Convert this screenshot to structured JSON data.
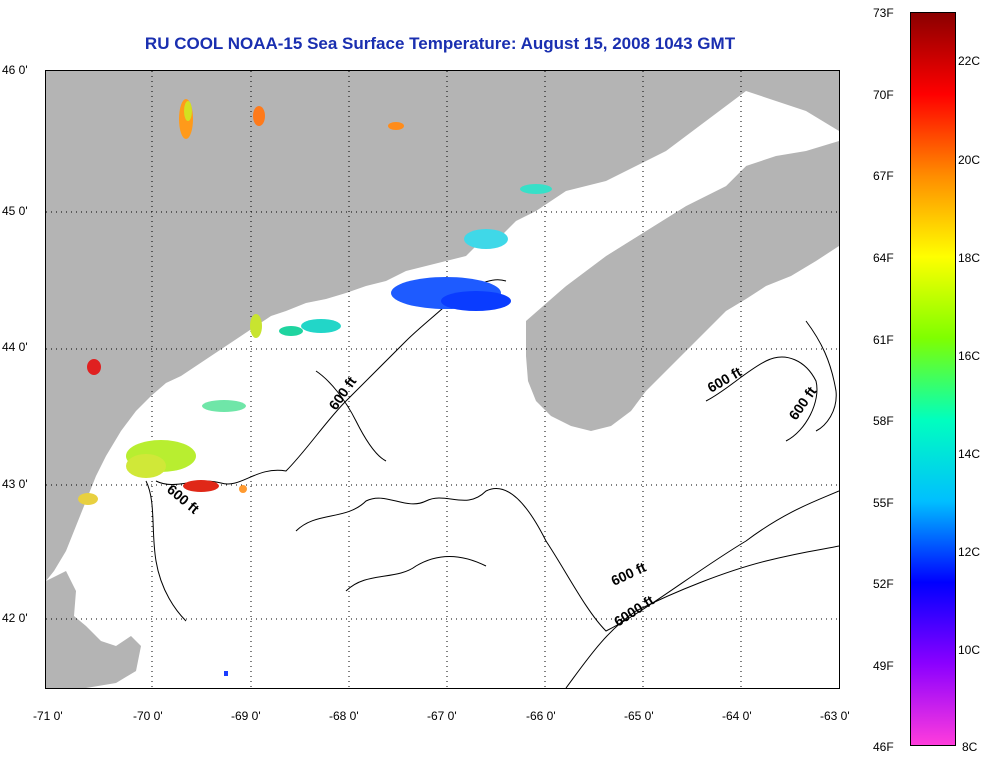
{
  "title": "RU COOL  NOAA-15  Sea Surface Temperature:  August 15, 2008 1043 GMT",
  "map": {
    "lon_ticks": [
      "-71 0'",
      "-70 0'",
      "-69 0'",
      "-68 0'",
      "-67 0'",
      "-66 0'",
      "-65 0'",
      "-64 0'",
      "-63 0'"
    ],
    "lat_ticks": [
      "46 0'",
      "45 0'",
      "44 0'",
      "43 0'",
      "42 0'"
    ],
    "land_color": "#b4b4b4",
    "water_color": "#ffffff",
    "contour_labels": [
      "600 ft",
      "600 ft",
      "600 ft",
      "600 ft",
      "600 ft",
      "6000 ft"
    ]
  },
  "colorbar": {
    "fahrenheit_labels": [
      "73F",
      "70F",
      "67F",
      "64F",
      "61F",
      "58F",
      "55F",
      "52F",
      "49F",
      "46F"
    ],
    "celsius_labels": [
      "22C",
      "20C",
      "18C",
      "16C",
      "14C",
      "12C",
      "10C",
      "8C"
    ],
    "colors": [
      "#8b0000",
      "#ff0000",
      "#ff8c00",
      "#ffff00",
      "#7fff00",
      "#00ffbf",
      "#00bfff",
      "#0000ff",
      "#8b00ff",
      "#ff3cdc"
    ]
  }
}
